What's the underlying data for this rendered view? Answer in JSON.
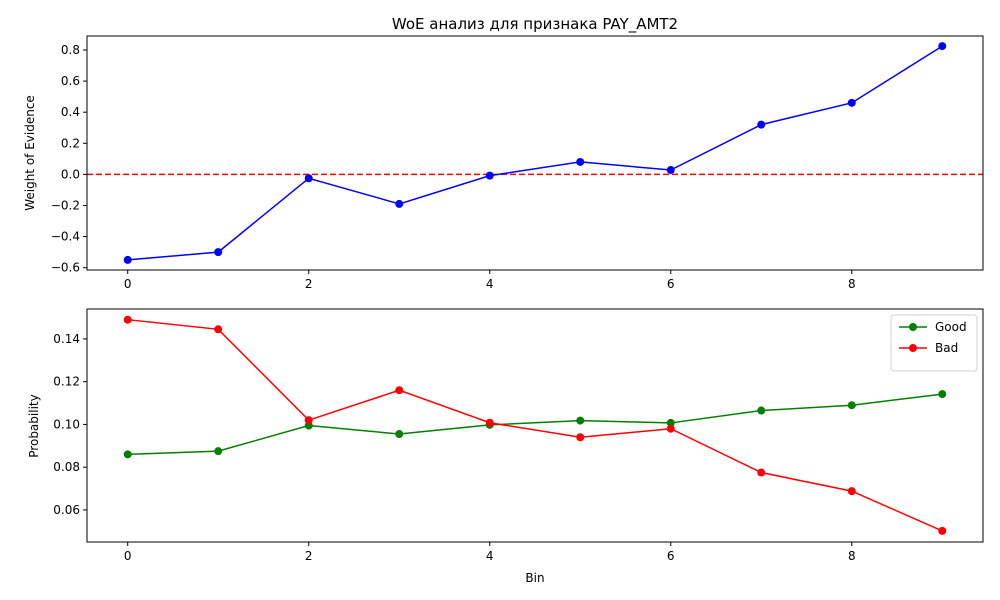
{
  "chart_data": [
    {
      "type": "line",
      "title": "WoE анализ для признака PAY_AMT2",
      "xlabel": "",
      "ylabel": "Weight of Evidence",
      "xlim": [
        -0.45,
        9.45
      ],
      "ylim": [
        -0.615,
        0.89
      ],
      "x": [
        0,
        1,
        2,
        3,
        4,
        5,
        6,
        7,
        8,
        9
      ],
      "x_ticks": [
        0,
        2,
        4,
        6,
        8
      ],
      "x_tick_labels": [
        "0",
        "2",
        "4",
        "6",
        "8"
      ],
      "y_ticks": [
        -0.6,
        -0.4,
        -0.2,
        0.0,
        0.2,
        0.4,
        0.6,
        0.8
      ],
      "y_tick_labels": [
        "−0.6",
        "−0.4",
        "−0.2",
        "0.0",
        "0.2",
        "0.4",
        "0.6",
        "0.8"
      ],
      "series": [
        {
          "values": [
            -0.55,
            -0.5,
            -0.025,
            -0.19,
            -0.008,
            0.08,
            0.028,
            0.32,
            0.46,
            0.825
          ],
          "color": "#0000ff",
          "marker": "circle"
        }
      ],
      "reference_line": {
        "y": 0,
        "color": "#ff0000",
        "style": "dashed"
      },
      "grid": false,
      "legend": "none"
    },
    {
      "type": "line",
      "title": "",
      "xlabel": "Bin",
      "ylabel": "Probability",
      "xlim": [
        -0.45,
        9.45
      ],
      "ylim": [
        0.045,
        0.154
      ],
      "x": [
        0,
        1,
        2,
        3,
        4,
        5,
        6,
        7,
        8,
        9
      ],
      "x_ticks": [
        0,
        2,
        4,
        6,
        8
      ],
      "x_tick_labels": [
        "0",
        "2",
        "4",
        "6",
        "8"
      ],
      "y_ticks": [
        0.06,
        0.08,
        0.1,
        0.12,
        0.14
      ],
      "y_tick_labels": [
        "0.06",
        "0.08",
        "0.10",
        "0.12",
        "0.14"
      ],
      "series": [
        {
          "name": "Good",
          "values": [
            0.086,
            0.0875,
            0.0995,
            0.0955,
            0.0998,
            0.1018,
            0.1007,
            0.1065,
            0.109,
            0.1142
          ],
          "color": "#008000",
          "marker": "circle"
        },
        {
          "name": "Bad",
          "values": [
            0.149,
            0.1445,
            0.102,
            0.116,
            0.1008,
            0.094,
            0.098,
            0.0775,
            0.0688,
            0.0502
          ],
          "color": "#ff0000",
          "marker": "circle"
        }
      ],
      "grid": false,
      "legend": "top-right"
    }
  ]
}
